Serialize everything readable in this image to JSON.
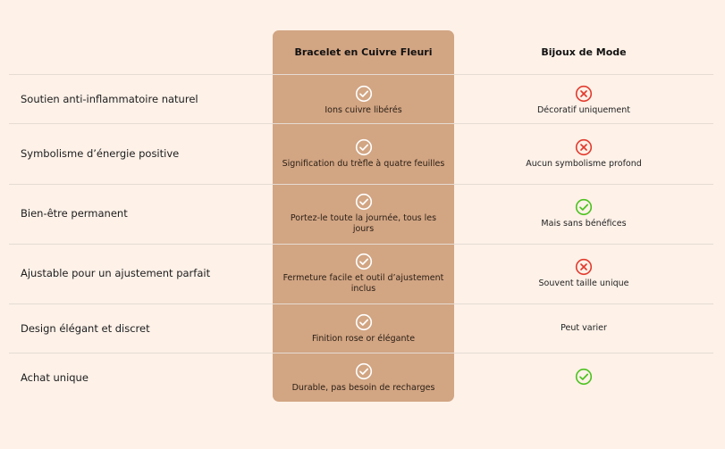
{
  "columns": {
    "product": "Bracelet en Cuivre Fleuri",
    "competitor": "Bijoux de Mode"
  },
  "colors": {
    "background": "#fdf1e8",
    "highlight": "#d2a583",
    "check_white": "#ffffff",
    "check_green": "#4cc21f",
    "cross_red": "#e33b2e"
  },
  "rows": [
    {
      "feature": "Soutien anti-inflammatoire naturel",
      "product_icon": "check-circle-icon",
      "product_text": "Ions cuivre libérés",
      "competitor_icon": "cross-circle-icon",
      "competitor_text": "Décoratif uniquement"
    },
    {
      "feature": "Symbolisme d’énergie positive",
      "product_icon": "check-circle-icon",
      "product_text": "Signification du trèfle à quatre feuilles",
      "competitor_icon": "cross-circle-icon",
      "competitor_text": "Aucun symbolisme profond"
    },
    {
      "feature": "Bien-être permanent",
      "product_icon": "check-circle-icon",
      "product_text": "Portez-le toute la journée, tous les jours",
      "competitor_icon": "check-circle-icon",
      "competitor_text": "Mais sans bénéfices"
    },
    {
      "feature": "Ajustable pour un ajustement parfait",
      "product_icon": "check-circle-icon",
      "product_text": "Fermeture facile et outil d’ajustement inclus",
      "competitor_icon": "cross-circle-icon",
      "competitor_text": "Souvent taille unique"
    },
    {
      "feature": "Design élégant et discret",
      "product_icon": "check-circle-icon",
      "product_text": "Finition rose or élégante",
      "competitor_icon": "",
      "competitor_text": "Peut varier"
    },
    {
      "feature": "Achat unique",
      "product_icon": "check-circle-icon",
      "product_text": "Durable, pas besoin de recharges",
      "competitor_icon": "check-circle-icon",
      "competitor_text": ""
    }
  ]
}
